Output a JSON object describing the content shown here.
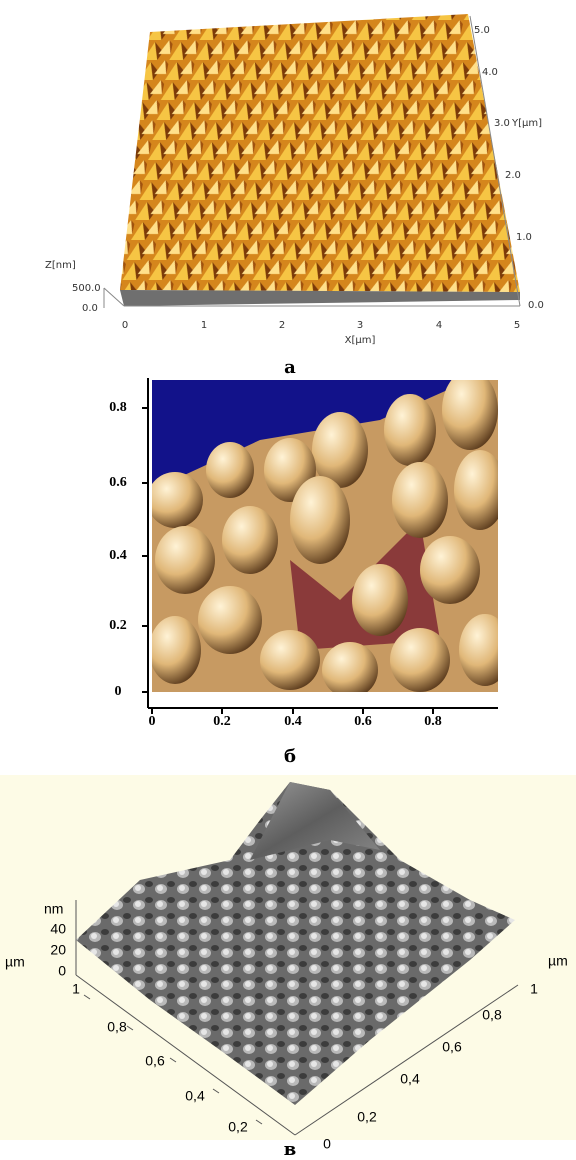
{
  "panels": [
    {
      "label": "а",
      "z_axis": {
        "title": "Z[nm]",
        "ticks": [
          "500.0",
          "0.0"
        ]
      },
      "x_axis": {
        "title": "X[µm]",
        "ticks": [
          "0",
          "1",
          "2",
          "3",
          "4",
          "5"
        ]
      },
      "y_axis": {
        "title": "Y[µm]",
        "ticks": [
          "0.0",
          "1.0",
          "2.0",
          "3.0",
          "4.0",
          "5.0"
        ]
      }
    },
    {
      "label": "б",
      "y_axis": {
        "ticks": [
          "0",
          "0.2",
          "0.4",
          "0.6",
          "0.8"
        ]
      },
      "x_axis": {
        "ticks": [
          "0",
          "0.2",
          "0.4",
          "0.6",
          "0.8"
        ]
      }
    },
    {
      "label": "в",
      "z_axis": {
        "title": "nm",
        "ticks": [
          "0",
          "20",
          "40"
        ]
      },
      "left_axis": {
        "title": "µm",
        "ticks": [
          "1",
          "0,8",
          "0,6",
          "0,4",
          "0,2"
        ]
      },
      "right_axis": {
        "title": "µm",
        "ticks": [
          "0",
          "0,2",
          "0,4",
          "0,6",
          "0,8",
          "1"
        ]
      }
    }
  ]
}
